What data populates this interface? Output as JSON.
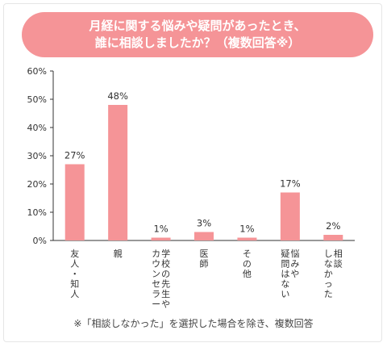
{
  "title_lines": [
    "月経に関する悩みや疑問があったとき、",
    "誰に相談しましたか？（複数回答※）"
  ],
  "footnote": "※「相談しなかった」を選択した場合を除き、複数回答",
  "colors": {
    "bar": "#f59497",
    "title_bg": "#f59497",
    "axis": "#333333"
  },
  "chart_data": {
    "type": "bar",
    "title": "月経に関する悩みや疑問があったとき、誰に相談しましたか？（複数回答※）",
    "categories": [
      "友人・知人",
      "親",
      "学校の先生やカウンセラー",
      "医師",
      "その他",
      "悩みや疑問はない",
      "相談しなかった"
    ],
    "category_lines": [
      [
        "友人・知人"
      ],
      [
        "親"
      ],
      [
        "学校の先生や",
        "カウンセラー"
      ],
      [
        "医師"
      ],
      [
        "その他"
      ],
      [
        "悩みや",
        "疑問はない"
      ],
      [
        "相談",
        "しなかった"
      ]
    ],
    "values": [
      27,
      48,
      1,
      3,
      1,
      17,
      2
    ],
    "value_labels": [
      "27%",
      "48%",
      "1%",
      "3%",
      "1%",
      "17%",
      "2%"
    ],
    "ylim": [
      0,
      60
    ],
    "yticks": [
      0,
      10,
      20,
      30,
      40,
      50,
      60
    ],
    "ytick_labels": [
      "0%",
      "10%",
      "20%",
      "30%",
      "40%",
      "50%",
      "60%"
    ],
    "grid": false
  }
}
